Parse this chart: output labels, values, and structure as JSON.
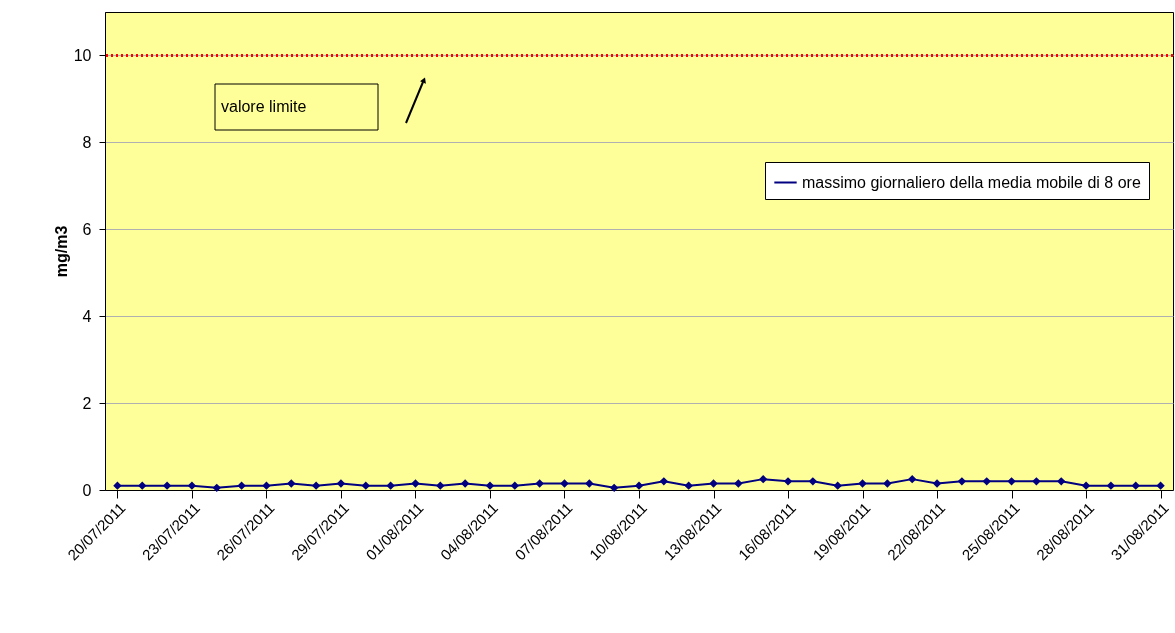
{
  "chart_data": {
    "type": "line",
    "ylabel": "mg/m3",
    "x": [
      "2011-07-20",
      "2011-07-21",
      "2011-07-22",
      "2011-07-23",
      "2011-07-24",
      "2011-07-25",
      "2011-07-26",
      "2011-07-27",
      "2011-07-28",
      "2011-07-29",
      "2011-07-30",
      "2011-07-31",
      "2011-08-01",
      "2011-08-02",
      "2011-08-03",
      "2011-08-04",
      "2011-08-05",
      "2011-08-06",
      "2011-08-07",
      "2011-08-08",
      "2011-08-09",
      "2011-08-10",
      "2011-08-11",
      "2011-08-12",
      "2011-08-13",
      "2011-08-14",
      "2011-08-15",
      "2011-08-16",
      "2011-08-17",
      "2011-08-18",
      "2011-08-19",
      "2011-08-20",
      "2011-08-21",
      "2011-08-22",
      "2011-08-23",
      "2011-08-24",
      "2011-08-25",
      "2011-08-26",
      "2011-08-27",
      "2011-08-28",
      "2011-08-29",
      "2011-08-30",
      "2011-08-31"
    ],
    "series": [
      {
        "name": "massimo giornaliero della media mobile di 8 ore",
        "color": "#000080",
        "values": [
          0.1,
          0.1,
          0.1,
          0.1,
          0.05,
          0.1,
          0.1,
          0.15,
          0.1,
          0.15,
          0.1,
          0.1,
          0.15,
          0.1,
          0.15,
          0.1,
          0.1,
          0.15,
          0.15,
          0.15,
          0.05,
          0.1,
          0.2,
          0.1,
          0.15,
          0.15,
          0.25,
          0.2,
          0.2,
          0.1,
          0.15,
          0.15,
          0.25,
          0.15,
          0.2,
          0.2,
          0.2,
          0.2,
          0.2,
          0.1,
          0.1,
          0.1,
          0.1
        ]
      }
    ],
    "xlim": [
      "2011-07-19T12:00",
      "2011-08-31T12:00"
    ],
    "xticks": [
      {
        "value": "2011-07-20",
        "label": "20/07/2011"
      },
      {
        "value": "2011-07-23",
        "label": "23/07/2011"
      },
      {
        "value": "2011-07-26",
        "label": "26/07/2011"
      },
      {
        "value": "2011-07-29",
        "label": "29/07/2011"
      },
      {
        "value": "2011-08-01",
        "label": "01/08/2011"
      },
      {
        "value": "2011-08-04",
        "label": "04/08/2011"
      },
      {
        "value": "2011-08-07",
        "label": "07/08/2011"
      },
      {
        "value": "2011-08-10",
        "label": "10/08/2011"
      },
      {
        "value": "2011-08-13",
        "label": "13/08/2011"
      },
      {
        "value": "2011-08-16",
        "label": "16/08/2011"
      },
      {
        "value": "2011-08-19",
        "label": "19/08/2011"
      },
      {
        "value": "2011-08-22",
        "label": "22/08/2011"
      },
      {
        "value": "2011-08-25",
        "label": "25/08/2011"
      },
      {
        "value": "2011-08-28",
        "label": "28/08/2011"
      },
      {
        "value": "2011-08-31",
        "label": "31/08/2011"
      }
    ],
    "ylim": [
      0,
      11
    ],
    "yticks": [
      0,
      2,
      4,
      6,
      8,
      10
    ],
    "grid": "y",
    "legend": "right",
    "marker": "diamond",
    "line_style": "solid",
    "ref_lines": [
      {
        "axis": "y",
        "value": 10,
        "label": "valore limite",
        "color": "#ff0000",
        "line_style": "dotted"
      }
    ]
  }
}
